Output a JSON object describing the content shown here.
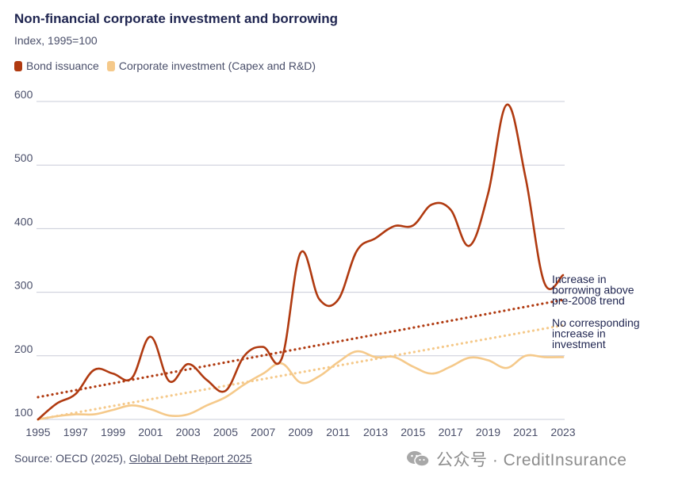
{
  "title": "Non-financial corporate investment and borrowing",
  "subtitle": "Index, 1995=100",
  "source": {
    "prefix": "Source: OECD (2025), ",
    "link_text": "Global Debt Report 2025"
  },
  "watermark": {
    "text": "公众号 · CreditInsurance",
    "icon": "wechat-icon"
  },
  "colors": {
    "bond": "#b03a10",
    "invest": "#f5c98a",
    "grid": "#c9ccd8",
    "text": "#4a4f6a",
    "title": "#1f2550"
  },
  "chart_data": {
    "type": "line",
    "title": "Non-financial corporate investment and borrowing",
    "ylabel": "Index, 1995=100",
    "xlabel": "",
    "xlim": [
      1995,
      2023
    ],
    "ylim": [
      100,
      600
    ],
    "yticks": [
      100,
      200,
      300,
      400,
      500,
      600
    ],
    "xticks": [
      1995,
      1997,
      1999,
      2001,
      2003,
      2005,
      2007,
      2009,
      2011,
      2013,
      2015,
      2017,
      2019,
      2021,
      2023
    ],
    "grid": "horizontal",
    "legend_position": "top-left",
    "series": [
      {
        "name": "Bond issuance",
        "color": "#b03a10",
        "x": [
          1995,
          1996,
          1997,
          1998,
          1999,
          2000,
          2001,
          2002,
          2003,
          2004,
          2005,
          2006,
          2007,
          2008,
          2009,
          2010,
          2011,
          2012,
          2013,
          2014,
          2015,
          2016,
          2017,
          2018,
          2019,
          2020,
          2021,
          2022,
          2023
        ],
        "values": [
          100,
          125,
          140,
          178,
          172,
          165,
          230,
          160,
          187,
          162,
          145,
          200,
          214,
          196,
          362,
          289,
          288,
          365,
          385,
          404,
          405,
          438,
          430,
          373,
          455,
          595,
          480,
          315,
          327
        ]
      },
      {
        "name": "Corporate investment (Capex and R&D)",
        "color": "#f5c98a",
        "x": [
          1995,
          1996,
          1997,
          1998,
          1999,
          2000,
          2001,
          2002,
          2003,
          2004,
          2005,
          2006,
          2007,
          2008,
          2009,
          2010,
          2011,
          2012,
          2013,
          2014,
          2015,
          2016,
          2017,
          2018,
          2019,
          2020,
          2021,
          2022,
          2023
        ],
        "values": [
          100,
          105,
          108,
          108,
          115,
          122,
          116,
          106,
          108,
          122,
          135,
          155,
          172,
          188,
          158,
          168,
          190,
          207,
          198,
          198,
          183,
          172,
          183,
          197,
          193,
          181,
          200,
          198,
          198
        ]
      }
    ],
    "trendlines": [
      {
        "name": "Increase in borrowing above pre-2008 trend",
        "color": "#b03a10",
        "style": "dotted",
        "x": [
          1995,
          2023
        ],
        "values": [
          135,
          288
        ]
      },
      {
        "name": "No corresponding increase in investment",
        "color": "#f5c98a",
        "style": "dotted",
        "x": [
          1995,
          2023
        ],
        "values": [
          100,
          248
        ]
      }
    ],
    "annotations": [
      {
        "text": [
          "Increase in",
          "borrowing above",
          "pre-2008 trend"
        ]
      },
      {
        "text": [
          "No corresponding",
          "increase in",
          "investment"
        ]
      }
    ]
  }
}
